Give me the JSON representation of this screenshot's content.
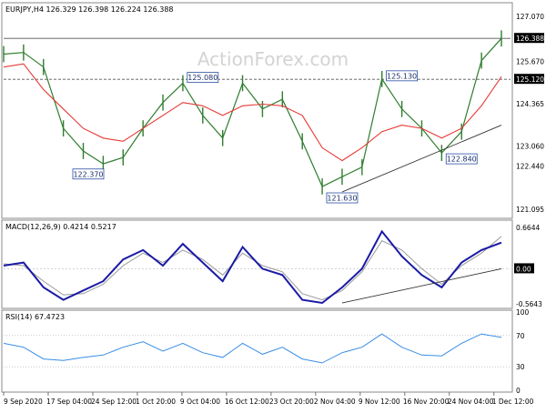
{
  "header": {
    "title": "EURJPY,H4  126.329 126.398 126.224 126.388",
    "watermark": "ActionForex.com"
  },
  "colors": {
    "price_bars": "#2f7d2f",
    "moving_average": "#e53935",
    "macd_line": "#1a1aa6",
    "macd_signal": "#9a9a9a",
    "rsi_line": "#3a8ee6",
    "annotation_box": "#2a4fa3",
    "price_tag_bg": "#000000",
    "divider": "#8a8a8a"
  },
  "chart_data": [
    {
      "type": "line",
      "panel": "price",
      "title": "EURJPY,H4",
      "ylim": [
        121.095,
        127.07
      ],
      "yticks": [
        127.07,
        126.388,
        125.67,
        125.12,
        124.365,
        123.06,
        122.44,
        121.095
      ],
      "ytick_labels": [
        "127.070",
        "126.388",
        "125.670",
        "125.120",
        "124.365",
        "123.060",
        "122.440",
        "121.095"
      ],
      "highlighted_ytick_labels": [
        "126.388",
        "125.120"
      ],
      "horizontal_lines": [
        {
          "y": 126.388,
          "style": "solid"
        },
        {
          "y": 125.12,
          "style": "dashed"
        }
      ],
      "x": [
        0,
        4,
        8,
        12,
        16,
        20,
        24,
        28,
        32,
        36,
        40,
        44,
        48,
        52,
        56,
        60,
        64,
        68,
        72,
        76,
        80,
        84,
        88,
        92,
        96,
        100
      ],
      "series": [
        {
          "values": [
            125.9,
            125.95,
            125.5,
            123.6,
            122.9,
            122.5,
            122.7,
            123.6,
            124.4,
            125.0,
            124.0,
            123.3,
            125.0,
            124.2,
            124.5,
            123.2,
            121.8,
            122.1,
            122.4,
            125.13,
            124.2,
            123.6,
            122.84,
            123.5,
            125.7,
            126.388
          ]
        },
        {
          "values": [
            125.5,
            125.6,
            124.8,
            124.2,
            123.6,
            123.3,
            123.2,
            123.6,
            124.0,
            124.4,
            124.3,
            124.0,
            124.3,
            124.35,
            124.3,
            124.0,
            123.0,
            122.6,
            123.0,
            123.5,
            123.7,
            123.6,
            123.3,
            123.6,
            124.3,
            125.2
          ]
        }
      ],
      "annotations": [
        {
          "text": "122.370",
          "x": 17,
          "y": 122.37
        },
        {
          "text": "125.080",
          "x": 40,
          "y": 125.08
        },
        {
          "text": "121.630",
          "x": 68,
          "y": 121.63
        },
        {
          "text": "125.130",
          "x": 80,
          "y": 125.13
        },
        {
          "text": "122.840",
          "x": 92,
          "y": 122.84
        }
      ],
      "trendline": {
        "from": [
          68,
          121.63
        ],
        "to": [
          100,
          123.7
        ]
      }
    },
    {
      "type": "line",
      "panel": "macd",
      "title": "MACD(12,26,9) 0.4214 0.5217",
      "ylim": [
        -0.5643,
        0.6644
      ],
      "ytick_labels": [
        "0.6644",
        "0.00",
        "-0.5643"
      ],
      "highlighted_ytick_labels": [
        "0.00"
      ],
      "x": [
        0,
        4,
        8,
        12,
        16,
        20,
        24,
        28,
        32,
        36,
        40,
        44,
        48,
        52,
        56,
        60,
        64,
        68,
        72,
        76,
        80,
        84,
        88,
        92,
        96,
        100
      ],
      "series": [
        {
          "values": [
            0.05,
            0.1,
            -0.3,
            -0.5,
            -0.35,
            -0.2,
            0.15,
            0.3,
            0.05,
            0.4,
            0.1,
            -0.2,
            0.35,
            0.0,
            -0.1,
            -0.5,
            -0.55,
            -0.3,
            0.0,
            0.6,
            0.2,
            -0.1,
            -0.3,
            0.1,
            0.3,
            0.42
          ]
        },
        {
          "values": [
            0.08,
            0.05,
            -0.2,
            -0.42,
            -0.4,
            -0.25,
            0.05,
            0.25,
            0.1,
            0.3,
            0.15,
            -0.1,
            0.25,
            0.05,
            -0.05,
            -0.4,
            -0.5,
            -0.35,
            -0.05,
            0.45,
            0.3,
            0.0,
            -0.25,
            0.05,
            0.25,
            0.52
          ]
        }
      ],
      "trendline": {
        "from": [
          68,
          -0.55
        ],
        "to": [
          100,
          0.0
        ]
      }
    },
    {
      "type": "line",
      "panel": "rsi",
      "title": "RSI(14) 67.4723",
      "ylim": [
        0,
        100
      ],
      "yticks": [
        100,
        70,
        30,
        0
      ],
      "ytick_labels": [
        "100",
        "70",
        "30",
        "0"
      ],
      "horizontal_lines": [
        {
          "y": 70,
          "style": "dotted"
        },
        {
          "y": 30,
          "style": "dotted"
        }
      ],
      "x": [
        0,
        4,
        8,
        12,
        16,
        20,
        24,
        28,
        32,
        36,
        40,
        44,
        48,
        52,
        56,
        60,
        64,
        68,
        72,
        76,
        80,
        84,
        88,
        92,
        96,
        100
      ],
      "series": [
        {
          "values": [
            60,
            55,
            40,
            38,
            42,
            45,
            55,
            62,
            50,
            60,
            48,
            42,
            60,
            46,
            55,
            40,
            35,
            48,
            55,
            72,
            55,
            45,
            44,
            60,
            72,
            67.5
          ]
        }
      ]
    }
  ],
  "x_axis": {
    "labels": [
      "9 Sep 2020",
      "17 Sep 04:00",
      "24 Sep 12:00",
      "1 Oct 20:00",
      "9 Oct 04:00",
      "16 Oct 12:00",
      "23 Oct 20:00",
      "2 Nov 04:00",
      "9 Nov 12:00",
      "16 Nov 20:00",
      "24 Nov 04:00",
      "1 Dec 12:00"
    ]
  }
}
